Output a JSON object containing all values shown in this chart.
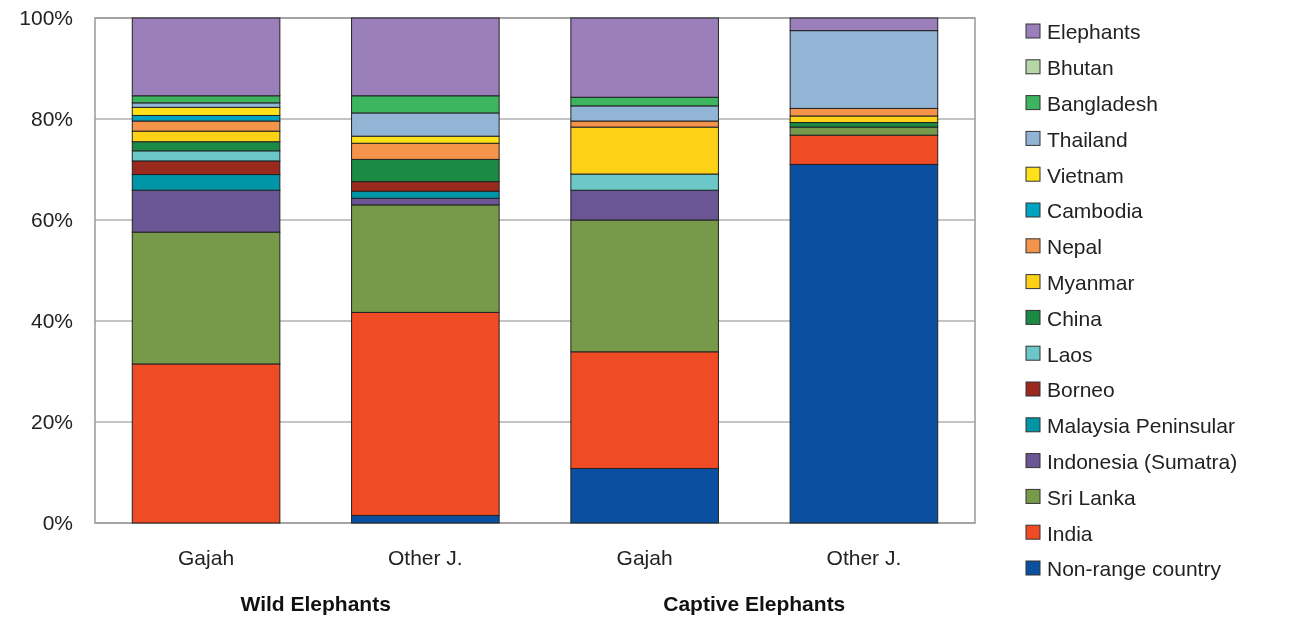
{
  "chart_data": {
    "type": "bar",
    "stacked": true,
    "categories": [
      "Gajah",
      "Other J.",
      "Gajah",
      "Other J."
    ],
    "annotations": [
      "Wild Elephants",
      "Captive Elephants"
    ],
    "ylim": [
      0,
      100
    ],
    "yticks": [
      {
        "value": 0,
        "label": "0%"
      },
      {
        "value": 20,
        "label": "20%"
      },
      {
        "value": 40,
        "label": "40%"
      },
      {
        "value": 60,
        "label": "60%"
      },
      {
        "value": 80,
        "label": "80%"
      },
      {
        "value": 100,
        "label": "100%"
      }
    ],
    "grid": "y",
    "legend": "right",
    "series": [
      {
        "name": "Non-range country",
        "color": "#0b4fa0",
        "values": [
          0,
          1.5,
          10.8,
          71.0
        ]
      },
      {
        "name": "India",
        "color": "#ef4b24",
        "values": [
          31.5,
          40.2,
          23.1,
          5.8
        ]
      },
      {
        "name": "Sri Lanka",
        "color": "#77994a",
        "values": [
          26.1,
          21.3,
          26.1,
          1.6
        ]
      },
      {
        "name": "Indonesia (Sumatra)",
        "color": "#6a5694",
        "values": [
          8.3,
          1.3,
          5.9,
          0
        ]
      },
      {
        "name": "Malaysia Peninsular",
        "color": "#0096a8",
        "values": [
          3.1,
          1.4,
          0,
          0
        ]
      },
      {
        "name": "Borneo",
        "color": "#9a2a1e",
        "values": [
          2.7,
          1.9,
          0,
          0
        ]
      },
      {
        "name": "Laos",
        "color": "#6cc8c8",
        "values": [
          2.0,
          0,
          3.2,
          0
        ]
      },
      {
        "name": "China",
        "color": "#1a8a45",
        "values": [
          1.8,
          4.4,
          0,
          0.9
        ]
      },
      {
        "name": "Myanmar",
        "color": "#fcd116",
        "values": [
          2.1,
          0,
          9.3,
          1.3
        ]
      },
      {
        "name": "Nepal",
        "color": "#f4934a",
        "values": [
          2.0,
          3.2,
          1.2,
          1.5
        ]
      },
      {
        "name": "Cambodia",
        "color": "#00a3c0",
        "values": [
          1.1,
          0,
          0,
          0
        ]
      },
      {
        "name": "Vietnam",
        "color": "#ffe11a",
        "values": [
          1.6,
          1.4,
          0,
          0
        ]
      },
      {
        "name": "Thailand",
        "color": "#92b5d6",
        "values": [
          0.9,
          4.6,
          3.0,
          15.4
        ]
      },
      {
        "name": "Bangladesh",
        "color": "#3cb55e",
        "values": [
          1.4,
          3.4,
          1.7,
          0
        ]
      },
      {
        "name": "Bhutan",
        "color": "#b5d6a7",
        "values": [
          null,
          0,
          0,
          0
        ]
      },
      {
        "name": "Elephants",
        "color": "#9b7fbb",
        "values": [
          15.4,
          15.4,
          15.7,
          2.5
        ]
      }
    ]
  }
}
